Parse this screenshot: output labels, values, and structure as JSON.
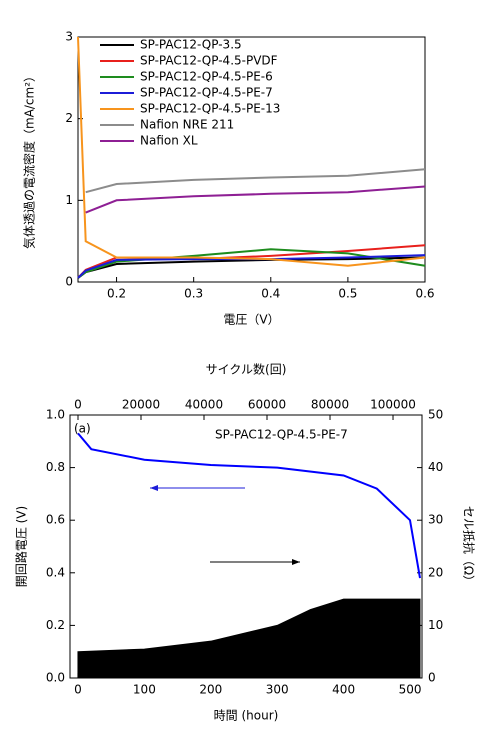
{
  "chart_data": [
    {
      "type": "line",
      "xlabel": "電圧（V）",
      "ylabel": "気体透過の電流密度（mA/cm²）",
      "xlim": [
        0.15,
        0.6
      ],
      "xticks": [
        0.2,
        0.3,
        0.4,
        0.5,
        0.6
      ],
      "ylim": [
        0,
        3
      ],
      "yticks": [
        0,
        1,
        2,
        3
      ],
      "legend": "upper left",
      "x": [
        0.15,
        0.16,
        0.2,
        0.3,
        0.4,
        0.5,
        0.6
      ],
      "series": [
        {
          "name": "SP-PAC12-QP-3.5",
          "color": "#000000",
          "values": [
            0.05,
            0.12,
            0.22,
            0.25,
            0.27,
            0.28,
            0.3
          ]
        },
        {
          "name": "SP-PAC12-QP-4.5-PVDF",
          "color": "#e8201c",
          "values": [
            0.05,
            0.15,
            0.3,
            0.28,
            0.32,
            0.38,
            0.45
          ]
        },
        {
          "name": "SP-PAC12-QP-4.5-PE-6",
          "color": "#1e8c1e",
          "values": [
            0.05,
            0.12,
            0.25,
            0.32,
            0.4,
            0.35,
            0.2
          ]
        },
        {
          "name": "SP-PAC12-QP-4.5-PE-7",
          "color": "#1c1cd8",
          "values": [
            0.05,
            0.14,
            0.27,
            0.28,
            0.28,
            0.3,
            0.33
          ]
        },
        {
          "name": "SP-PAC12-QP-4.5-PE-13",
          "color": "#f7941d",
          "values": [
            3,
            0.5,
            0.3,
            0.3,
            0.28,
            0.2,
            0.3
          ]
        },
        {
          "name": "Nafion NRE 211",
          "color": "#8c8c8c",
          "values": [
            null,
            1.1,
            1.2,
            1.25,
            1.28,
            1.3,
            1.38
          ]
        },
        {
          "name": "Nafion XL",
          "color": "#8e1f94",
          "values": [
            null,
            0.85,
            1.0,
            1.05,
            1.08,
            1.1,
            1.17
          ]
        }
      ]
    },
    {
      "type": "line",
      "xlabel": "時間 (hour)",
      "ylabel": "開回路電圧 (V)",
      "y2label": "セル抵抗（Ω）",
      "x2label": "サイクル数(回)",
      "annotations": [
        "(a)",
        "SP-PAC12-QP-4.5-PE-7"
      ],
      "xlim": [
        -12,
        518
      ],
      "xticks": [
        0,
        100,
        200,
        300,
        400,
        500
      ],
      "x2lim": [
        -2540,
        109200
      ],
      "x2ticks": [
        0,
        20000,
        40000,
        60000,
        80000,
        100000
      ],
      "ylim": [
        0,
        1.0
      ],
      "yticks": [
        {
          "value": 0,
          "label": "0.0"
        },
        0.2,
        0.4,
        0.6,
        0.8,
        {
          "value": 1,
          "label": "1.0"
        }
      ],
      "y2lim": [
        0,
        50
      ],
      "y2ticks": [
        0,
        10,
        20,
        30,
        40,
        50
      ],
      "series": [
        {
          "color": "#0000ff",
          "x": [
            0,
            20,
            100,
            200,
            300,
            400,
            450,
            500,
            515
          ],
          "values": [
            0.93,
            0.87,
            0.83,
            0.81,
            0.8,
            0.77,
            0.72,
            0.6,
            0.38
          ]
        },
        {
          "color": "#000000",
          "axis": "y2",
          "fill": true,
          "x": [
            0,
            100,
            200,
            300,
            350,
            400,
            515
          ],
          "values": [
            5,
            5.5,
            7,
            10,
            13,
            15,
            15
          ]
        }
      ]
    }
  ]
}
